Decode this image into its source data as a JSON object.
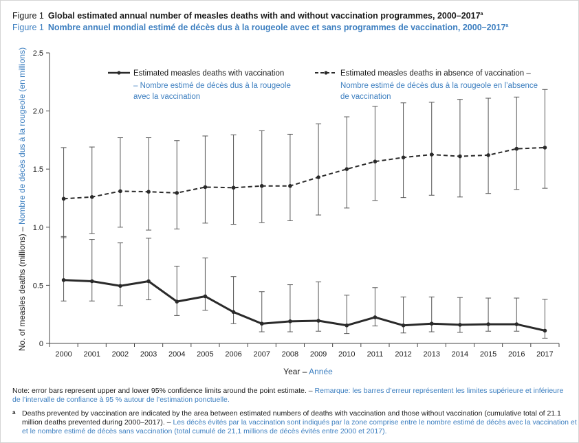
{
  "header": {
    "fig_label_en": "Figure 1",
    "title_en": "Global estimated annual number of measles deaths with and without vaccination programmes, 2000–2017",
    "title_en_sup": "a",
    "fig_label_fr": "Figure 1",
    "title_fr": "Nombre annuel mondial estimé de décès dus à la rougeole avec et sans programmes de vaccination, 2000–2017",
    "title_fr_sup": "a"
  },
  "chart_data": {
    "type": "line",
    "x": [
      2000,
      2001,
      2002,
      2003,
      2004,
      2005,
      2006,
      2007,
      2008,
      2009,
      2010,
      2011,
      2012,
      2013,
      2014,
      2015,
      2016,
      2017
    ],
    "ylim": [
      0,
      2.5
    ],
    "yticks": [
      "0",
      "0.5",
      "1.0",
      "1.5",
      "2.0",
      "2.5"
    ],
    "xlabel_en": "Year",
    "xlabel_fr": "Année",
    "ylabel_en": "No. of measles deaths (millions)",
    "ylabel_fr": "Nombre de décès dus à la rougeole (en millions)",
    "series": [
      {
        "name_en": "Estimated measles deaths with vaccination",
        "name_fr": "Nombre estimé de décès dus à la rougeole avec la vaccination",
        "style": "solid",
        "values": [
          0.545,
          0.535,
          0.495,
          0.535,
          0.36,
          0.405,
          0.27,
          0.17,
          0.19,
          0.195,
          0.155,
          0.225,
          0.155,
          0.17,
          0.16,
          0.165,
          0.165,
          0.11
        ],
        "lower": [
          0.365,
          0.365,
          0.325,
          0.375,
          0.24,
          0.285,
          0.17,
          0.1,
          0.1,
          0.105,
          0.085,
          0.15,
          0.09,
          0.1,
          0.095,
          0.105,
          0.105,
          0.045
        ],
        "upper": [
          0.92,
          0.895,
          0.865,
          0.905,
          0.665,
          0.735,
          0.575,
          0.445,
          0.505,
          0.53,
          0.415,
          0.48,
          0.4,
          0.4,
          0.395,
          0.39,
          0.39,
          0.38
        ]
      },
      {
        "name_en": "Estimated measles deaths in absence of vaccination",
        "name_fr": "Nombre estimé de décès dus à la rougeole en l’absence de vaccination",
        "style": "dashed",
        "values": [
          1.245,
          1.26,
          1.31,
          1.305,
          1.295,
          1.345,
          1.34,
          1.355,
          1.355,
          1.43,
          1.5,
          1.565,
          1.6,
          1.625,
          1.61,
          1.62,
          1.675,
          1.685
        ],
        "lower": [
          0.91,
          0.945,
          1.0,
          0.975,
          0.985,
          1.035,
          1.025,
          1.04,
          1.055,
          1.105,
          1.165,
          1.23,
          1.255,
          1.275,
          1.26,
          1.29,
          1.325,
          1.335
        ],
        "upper": [
          1.685,
          1.69,
          1.77,
          1.77,
          1.745,
          1.785,
          1.795,
          1.83,
          1.8,
          1.89,
          1.95,
          2.04,
          2.07,
          2.075,
          2.1,
          2.11,
          2.12,
          2.185
        ]
      }
    ],
    "legend_placement": "top"
  },
  "notes": {
    "note_en": "Note: error bars represent upper and lower 95% confidence limits around the point estimate.",
    "note_fr": "Remarque: les barres d’erreur représentent les limites supérieure et inférieure de l’intervalle de confiance à 95 % autour de l’estimation ponctuelle.",
    "foot_mark": "a",
    "foot_en": "Deaths prevented by vaccination are indicated by the area between estimated numbers of deaths with vaccination and those without vaccination (cumulative total of 21.1 million deaths prevented during 2000–2017).",
    "foot_fr": "Les décès évités par la vaccination sont indiqués par la zone comprise entre le nombre estimé de décès avec la vaccination et et le nombre estimé de décès sans vaccination (total cumulé de 21,1 millions de décès évités entre 2000 et 2017)."
  },
  "colors": {
    "english_text": "#1a1a1a",
    "french_text": "#3d7fc0",
    "series_line": "#2a2a2a",
    "error_bar": "#555555",
    "axis": "#444444"
  }
}
